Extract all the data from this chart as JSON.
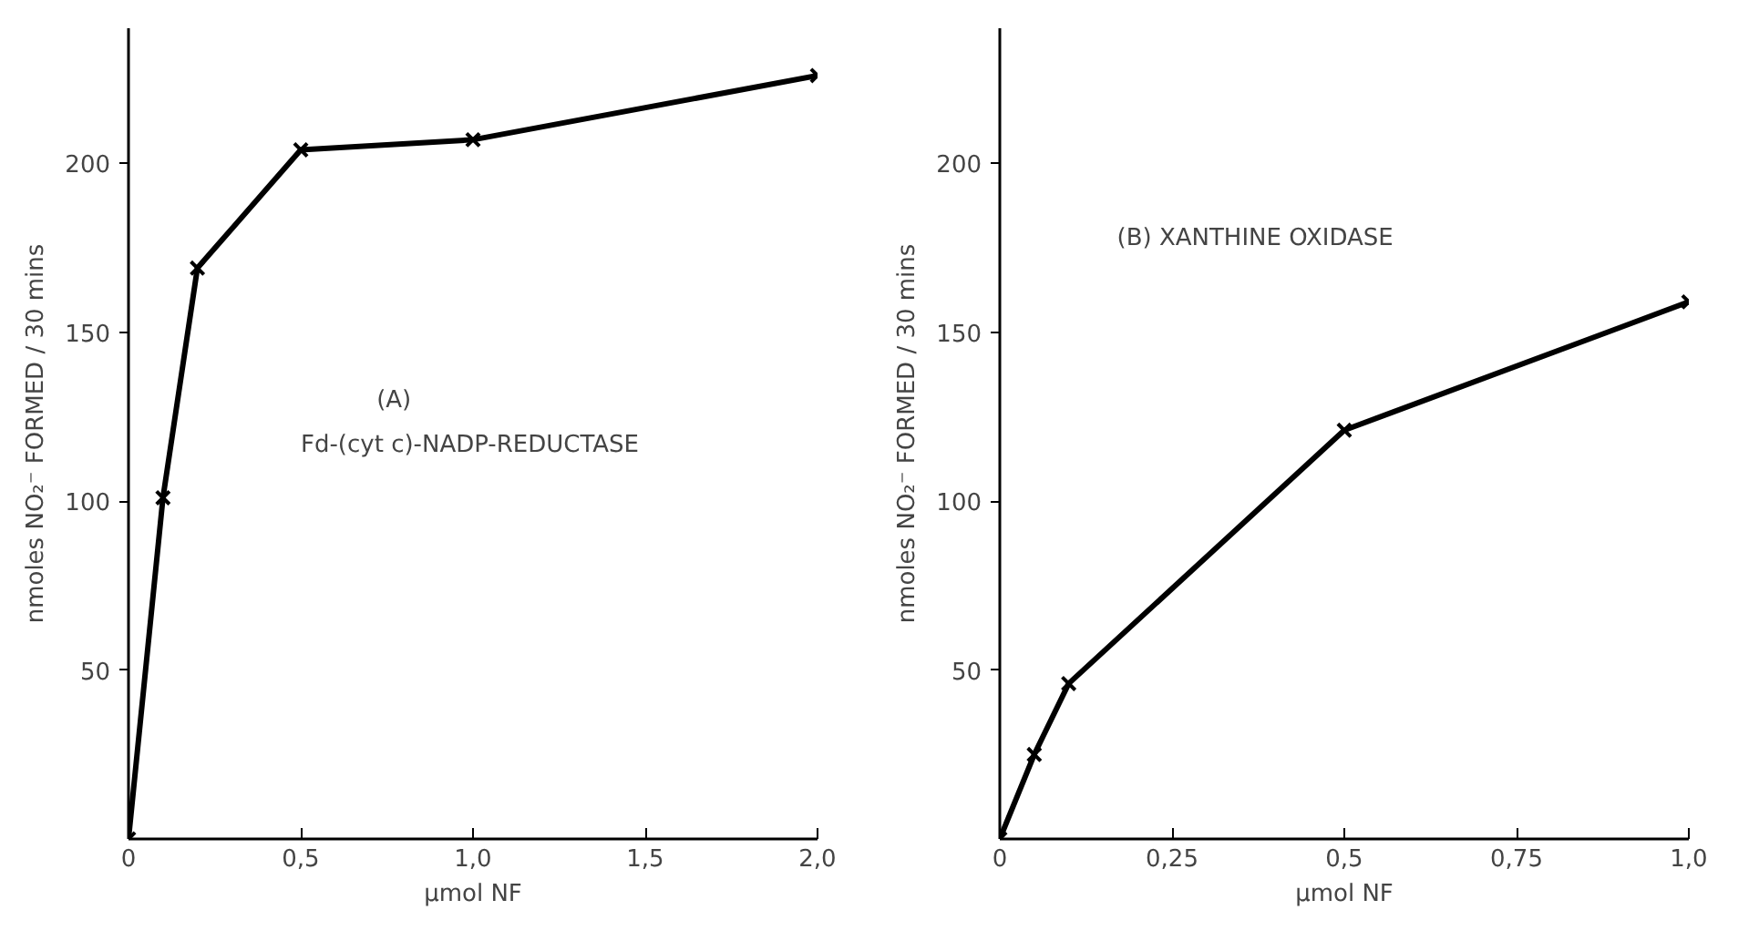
{
  "chart_data": [
    {
      "type": "line",
      "xlabel": "µmol NF",
      "ylabel": "nmoles NO₂⁻ FORMED / 30 mins",
      "annotations": [
        "(A)",
        "Fd-(cyt c)-NADP-REDUCTASE"
      ],
      "x": [
        0,
        0.1,
        0.2,
        0.5,
        1.0,
        2.0
      ],
      "series": [
        {
          "color": "#000000",
          "values": [
            0,
            101,
            169,
            204,
            207,
            226
          ]
        }
      ],
      "xlim": [
        0,
        2.0
      ],
      "ylim": [
        0,
        240
      ],
      "xticks": [
        {
          "value": 0,
          "label": "0"
        },
        {
          "value": 0.5,
          "label": "0,5"
        },
        {
          "value": 1.0,
          "label": "1,0"
        },
        {
          "value": 1.5,
          "label": "1,5"
        },
        {
          "value": 2.0,
          "label": "2,0"
        }
      ],
      "yticks": [
        50,
        100,
        150,
        200
      ],
      "marker": "cross",
      "grid": false
    },
    {
      "type": "line",
      "xlabel": "µmol NF",
      "ylabel": "nmoles NO₂⁻ FORMED / 30 mins",
      "annotations": [
        "(B) XANTHINE OXIDASE"
      ],
      "x": [
        0,
        0.05,
        0.1,
        0.5,
        1.0
      ],
      "series": [
        {
          "color": "#000000",
          "values": [
            0,
            25,
            46,
            121,
            159
          ]
        }
      ],
      "xlim": [
        0,
        1.0
      ],
      "ylim": [
        0,
        240
      ],
      "xticks": [
        {
          "value": 0,
          "label": "0"
        },
        {
          "value": 0.25,
          "label": "0,25"
        },
        {
          "value": 0.5,
          "label": "0,5"
        },
        {
          "value": 0.75,
          "label": "0,75"
        },
        {
          "value": 1.0,
          "label": "1,0"
        }
      ],
      "yticks": [
        50,
        100,
        150,
        200
      ],
      "marker": "cross",
      "grid": false
    }
  ]
}
